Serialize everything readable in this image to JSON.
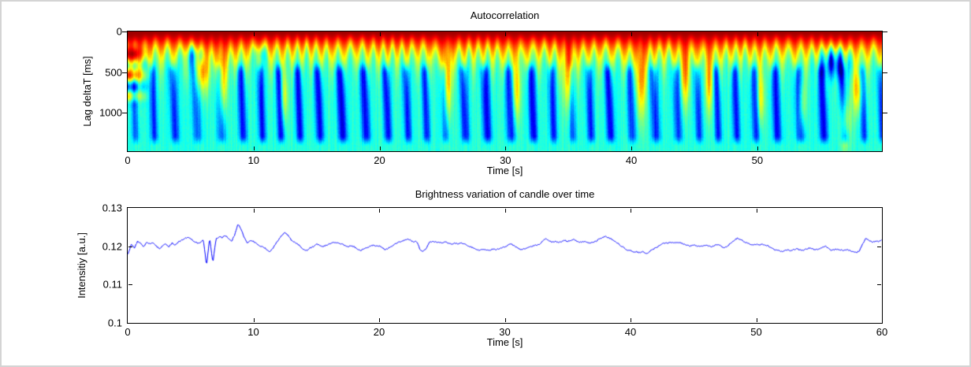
{
  "figure": {
    "background": "#ffffff",
    "frame_color": "#d4d4d4",
    "axis_color": "#000000"
  },
  "chart_data": [
    {
      "type": "heatmap",
      "title": "Autocorrelation",
      "xlabel": "Time [s]",
      "ylabel": "Lag deltaT [ms]",
      "xlim": [
        0,
        59.9
      ],
      "ylim_ms": [
        0,
        1475
      ],
      "x_ticks": [
        0,
        10,
        20,
        30,
        40,
        50
      ],
      "y_ticks": [
        0,
        500,
        1000
      ],
      "colormap": "jet",
      "value_range": [
        0,
        1
      ],
      "legend": "none",
      "grid": false,
      "model": {
        "background_level": 0.41,
        "hot_level": 0.97,
        "envelope": {
          "base_ms": 150,
          "slow_gain_ms": 230,
          "osc_amp_ms": 85,
          "osc_period_s": 0.85
        },
        "envelope_slow": [
          0.9,
          0.85,
          0.5,
          0.45,
          0.5,
          0.65,
          0.8,
          0.85,
          0.7,
          0.55,
          0.5,
          0.45,
          0.5,
          0.45,
          0.4,
          0.45,
          0.5,
          0.45,
          0.4,
          0.45,
          0.5,
          0.45,
          0.5,
          0.45,
          0.5,
          0.75,
          0.55,
          0.5,
          0.45,
          0.5,
          0.6,
          0.55,
          0.5,
          0.45,
          0.55,
          0.8,
          0.6,
          0.5,
          0.45,
          0.5,
          0.7,
          0.75,
          0.55,
          0.5,
          0.7,
          0.6,
          0.7,
          0.55,
          0.5,
          0.45,
          0.6,
          0.5,
          0.45,
          0.55,
          0.5,
          0.6,
          0.7,
          0.75,
          0.6,
          0.5,
          0.5
        ],
        "blue_strength": [
          0.5,
          0.7,
          0.8,
          0.7,
          0.8,
          0.7,
          0.5,
          0.6,
          0.8,
          0.9,
          1.0,
          0.9,
          1.0,
          0.9,
          1.0,
          0.95,
          0.9,
          1.0,
          0.95,
          0.9,
          1.0,
          0.9,
          0.85,
          0.9,
          0.8,
          0.6,
          0.8,
          0.9,
          1.0,
          0.9,
          0.8,
          0.9,
          1.0,
          0.9,
          0.8,
          0.6,
          0.8,
          0.9,
          1.0,
          0.9,
          0.7,
          0.6,
          0.8,
          0.9,
          0.7,
          0.8,
          0.7,
          0.85,
          0.9,
          0.85,
          0.8,
          0.85,
          0.9,
          0.8,
          0.85,
          0.9,
          1.0,
          0.9,
          0.7,
          0.8,
          0.8
        ],
        "blue_wedges": {
          "period_s": 1.65,
          "ramp_start_ms": 330,
          "ramp_end_ms": 520,
          "fade_start_ms": 1280,
          "fade_end_ms": 1430,
          "max_depth": 0.32,
          "diag_slope_s_per_ms": 0.00025
        },
        "warm_features": [
          {
            "t": 0.4,
            "lag": 350,
            "lag_sigma": 320,
            "t_sigma": 0.5,
            "strength": 0.32
          },
          {
            "t": 5.9,
            "lag": 420,
            "lag_sigma": 300,
            "t_sigma": 0.5,
            "strength": 0.35
          },
          {
            "t": 7.5,
            "lag": 600,
            "lag_sigma": 450,
            "t_sigma": 0.35,
            "strength": 0.3
          },
          {
            "t": 12.4,
            "lag": 800,
            "lag_sigma": 350,
            "t_sigma": 0.3,
            "strength": 0.22
          },
          {
            "t": 25.4,
            "lag": 600,
            "lag_sigma": 500,
            "t_sigma": 0.3,
            "strength": 0.33
          },
          {
            "t": 30.9,
            "lag": 700,
            "lag_sigma": 400,
            "t_sigma": 0.3,
            "strength": 0.25
          },
          {
            "t": 35.0,
            "lag": 500,
            "lag_sigma": 450,
            "t_sigma": 0.4,
            "strength": 0.33
          },
          {
            "t": 40.8,
            "lag": 550,
            "lag_sigma": 500,
            "t_sigma": 0.35,
            "strength": 0.33
          },
          {
            "t": 44.3,
            "lag": 500,
            "lag_sigma": 400,
            "t_sigma": 0.35,
            "strength": 0.3
          },
          {
            "t": 46.2,
            "lag": 600,
            "lag_sigma": 400,
            "t_sigma": 0.3,
            "strength": 0.28
          },
          {
            "t": 50.3,
            "lag": 800,
            "lag_sigma": 350,
            "t_sigma": 0.3,
            "strength": 0.22
          },
          {
            "t": 53.6,
            "lag": 900,
            "lag_sigma": 350,
            "t_sigma": 0.3,
            "strength": 0.22
          },
          {
            "t": 57.0,
            "lag": 1100,
            "lag_sigma": 300,
            "t_sigma": 0.4,
            "strength": 0.28
          },
          {
            "t": 58.0,
            "lag": 700,
            "lag_sigma": 300,
            "t_sigma": 0.4,
            "strength": 0.3
          }
        ],
        "blue_blobs": [
          {
            "t": 5.4,
            "lag": 260,
            "lag_sigma": 160,
            "t_sigma": 0.8,
            "strength": 0.5
          },
          {
            "t": 10.5,
            "lag": 250,
            "lag_sigma": 120,
            "t_sigma": 0.4,
            "strength": 0.3
          },
          {
            "t": 56.2,
            "lag": 330,
            "lag_sigma": 200,
            "t_sigma": 1.1,
            "strength": 0.55
          }
        ],
        "left_stripes": {
          "t_end_s": 1.8,
          "period_ms": 270,
          "strength": 0.3,
          "lag_fade_start_ms": 700,
          "lag_fade_end_ms": 1000
        }
      }
    },
    {
      "type": "line",
      "title": "Brightness variation of candle over time",
      "xlabel": "Time [s]",
      "ylabel": "Intensitiy [a.u.]",
      "xlim": [
        0,
        60
      ],
      "ylim": [
        0.1,
        0.13
      ],
      "x_ticks": [
        0,
        10,
        20,
        30,
        40,
        50,
        60
      ],
      "y_ticks": [
        0.13,
        0.12,
        0.11,
        0.1
      ],
      "line_color": "#0000FF",
      "legend": "none",
      "grid": false,
      "x_start": 0,
      "x_step": 0.25,
      "values": [
        0.1178,
        0.1205,
        0.1195,
        0.1212,
        0.1208,
        0.1198,
        0.121,
        0.1205,
        0.1208,
        0.12,
        0.1192,
        0.12,
        0.1205,
        0.1198,
        0.1208,
        0.1202,
        0.121,
        0.1215,
        0.122,
        0.1222,
        0.1218,
        0.1212,
        0.1208,
        0.121,
        0.1215,
        0.1148,
        0.1222,
        0.1155,
        0.1218,
        0.1225,
        0.1222,
        0.1228,
        0.122,
        0.1212,
        0.123,
        0.1258,
        0.1245,
        0.1222,
        0.1208,
        0.1215,
        0.1212,
        0.1205,
        0.12,
        0.1198,
        0.1192,
        0.1185,
        0.1192,
        0.1205,
        0.1218,
        0.1228,
        0.1235,
        0.1228,
        0.1215,
        0.121,
        0.1205,
        0.1198,
        0.119,
        0.1188,
        0.1195,
        0.1198,
        0.1205,
        0.1202,
        0.1198,
        0.1202,
        0.1205,
        0.1208,
        0.121,
        0.1208,
        0.1205,
        0.1202,
        0.1198,
        0.12,
        0.1198,
        0.1192,
        0.1188,
        0.1192,
        0.1195,
        0.12,
        0.1202,
        0.12,
        0.12,
        0.1195,
        0.119,
        0.1195,
        0.12,
        0.1205,
        0.121,
        0.1212,
        0.1215,
        0.1218,
        0.1215,
        0.121,
        0.1212,
        0.119,
        0.1185,
        0.1195,
        0.121,
        0.1212,
        0.121,
        0.121,
        0.1208,
        0.121,
        0.1208,
        0.1205,
        0.1208,
        0.1205,
        0.1208,
        0.1205,
        0.1202,
        0.1198,
        0.1195,
        0.119,
        0.1188,
        0.1192,
        0.119,
        0.1188,
        0.1192,
        0.119,
        0.1192,
        0.1195,
        0.1198,
        0.1202,
        0.1205,
        0.12,
        0.1195,
        0.119,
        0.1192,
        0.1195,
        0.1198,
        0.12,
        0.1202,
        0.1205,
        0.1212,
        0.122,
        0.1215,
        0.121,
        0.1212,
        0.121,
        0.1212,
        0.1215,
        0.1212,
        0.1215,
        0.1218,
        0.1212,
        0.121,
        0.1212,
        0.121,
        0.1208,
        0.121,
        0.1212,
        0.1218,
        0.1222,
        0.1225,
        0.1222,
        0.1218,
        0.1212,
        0.1208,
        0.12,
        0.1195,
        0.119,
        0.1188,
        0.1185,
        0.1185,
        0.1182,
        0.1185,
        0.118,
        0.1185,
        0.119,
        0.1195,
        0.12,
        0.1205,
        0.1208,
        0.1208,
        0.121,
        0.1208,
        0.121,
        0.1208,
        0.1205,
        0.1202,
        0.12,
        0.1202,
        0.12,
        0.1198,
        0.12,
        0.1202,
        0.12,
        0.1198,
        0.1202,
        0.1205,
        0.1198,
        0.1195,
        0.12,
        0.1208,
        0.1215,
        0.122,
        0.1218,
        0.1212,
        0.1208,
        0.1205,
        0.1202,
        0.1205,
        0.1202,
        0.1205,
        0.1202,
        0.12,
        0.1195,
        0.119,
        0.1188,
        0.1185,
        0.1188,
        0.119,
        0.1188,
        0.119,
        0.1192,
        0.119,
        0.1188,
        0.1192,
        0.1195,
        0.1192,
        0.119,
        0.1192,
        0.1195,
        0.12,
        0.1195,
        0.1188,
        0.119,
        0.1192,
        0.119,
        0.1188,
        0.119,
        0.1188,
        0.1185,
        0.1182,
        0.1188,
        0.1205,
        0.122,
        0.1215,
        0.121,
        0.1212,
        0.1212,
        0.1215
      ]
    }
  ]
}
